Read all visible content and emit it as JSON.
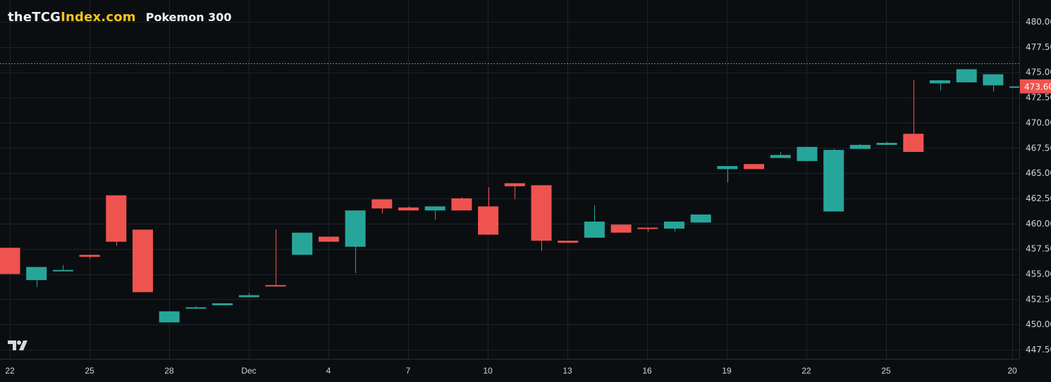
{
  "header": {
    "brand_white": "theTCG",
    "brand_yellow": "Index.com",
    "symbol": "Pokemon 300"
  },
  "colors": {
    "background": "#0b0e11",
    "grid": "#1e222b",
    "axis_text": "#d1d4dc",
    "up": "#26a69a",
    "down": "#ef5350",
    "brand_yellow": "#f5c518",
    "last_price_label_bg": "#ef5350",
    "high_line": "#26a69a"
  },
  "price_axis": {
    "last_price_label": "473.60",
    "ticks": [
      "480.00",
      "477.50",
      "475.00",
      "472.50",
      "470.00",
      "467.50",
      "465.00",
      "462.50",
      "460.00",
      "457.50",
      "455.00",
      "452.50",
      "450.00",
      "447.50"
    ]
  },
  "time_axis": {
    "ticks": [
      "22",
      "25",
      "28",
      "Dec",
      "4",
      "7",
      "10",
      "13",
      "16",
      "19",
      "22",
      "25",
      "20"
    ]
  },
  "chart_data": {
    "type": "candlestick",
    "title": "Pokemon 300",
    "source_label": "theTCGIndex.com",
    "xlabel": "",
    "ylabel": "",
    "ylim": [
      446.5,
      481.5
    ],
    "y_ticks": [
      447.5,
      450,
      452.5,
      455,
      457.5,
      460,
      462.5,
      465,
      467.5,
      470,
      472.5,
      475,
      477.5,
      480
    ],
    "x_tick_labels": [
      "22",
      "25",
      "28",
      "Dec",
      "4",
      "7",
      "10",
      "13",
      "16",
      "19",
      "22",
      "25",
      "20"
    ],
    "grid": true,
    "last_price": 473.6,
    "dotted_high_line": 475.9,
    "candles": [
      {
        "date": "Nov 22",
        "open": 457.6,
        "high": 457.6,
        "low": 455.0,
        "close": 455.0
      },
      {
        "date": "Nov 23",
        "open": 454.4,
        "high": 455.7,
        "low": 453.7,
        "close": 455.7
      },
      {
        "date": "Nov 24",
        "open": 455.4,
        "high": 455.9,
        "low": 455.3,
        "close": 455.4
      },
      {
        "date": "Nov 25",
        "open": 456.9,
        "high": 456.9,
        "low": 456.5,
        "close": 456.7
      },
      {
        "date": "Nov 26",
        "open": 462.8,
        "high": 462.8,
        "low": 457.8,
        "close": 458.2
      },
      {
        "date": "Nov 27",
        "open": 459.4,
        "high": 459.4,
        "low": 453.2,
        "close": 453.2
      },
      {
        "date": "Nov 28",
        "open": 450.2,
        "high": 451.3,
        "low": 450.2,
        "close": 451.3
      },
      {
        "date": "Nov 29",
        "open": 451.6,
        "high": 451.8,
        "low": 451.6,
        "close": 451.7
      },
      {
        "date": "Nov 30",
        "open": 451.9,
        "high": 452.1,
        "low": 451.9,
        "close": 452.1
      },
      {
        "date": "Dec 1",
        "open": 452.7,
        "high": 453.1,
        "low": 452.7,
        "close": 452.9
      },
      {
        "date": "Dec 2",
        "open": 453.9,
        "high": 459.4,
        "low": 453.8,
        "close": 453.8
      },
      {
        "date": "Dec 3",
        "open": 456.9,
        "high": 459.1,
        "low": 456.9,
        "close": 459.1
      },
      {
        "date": "Dec 4",
        "open": 458.7,
        "high": 458.7,
        "low": 458.2,
        "close": 458.2
      },
      {
        "date": "Dec 5",
        "open": 457.7,
        "high": 461.3,
        "low": 455.1,
        "close": 461.3
      },
      {
        "date": "Dec 6",
        "open": 462.4,
        "high": 462.4,
        "low": 461.0,
        "close": 461.5
      },
      {
        "date": "Dec 7",
        "open": 461.6,
        "high": 461.7,
        "low": 461.3,
        "close": 461.3
      },
      {
        "date": "Dec 8",
        "open": 461.3,
        "high": 461.7,
        "low": 460.4,
        "close": 461.7
      },
      {
        "date": "Dec 9",
        "open": 462.5,
        "high": 462.6,
        "low": 461.3,
        "close": 461.3
      },
      {
        "date": "Dec 10",
        "open": 461.7,
        "high": 463.6,
        "low": 458.9,
        "close": 458.9
      },
      {
        "date": "Dec 11",
        "open": 464.0,
        "high": 464.0,
        "low": 462.4,
        "close": 463.7
      },
      {
        "date": "Dec 12",
        "open": 463.8,
        "high": 463.8,
        "low": 457.3,
        "close": 458.3
      },
      {
        "date": "Dec 13",
        "open": 458.3,
        "high": 458.3,
        "low": 458.1,
        "close": 458.1
      },
      {
        "date": "Dec 14",
        "open": 458.6,
        "high": 461.8,
        "low": 458.6,
        "close": 460.2
      },
      {
        "date": "Dec 15",
        "open": 459.9,
        "high": 459.9,
        "low": 459.1,
        "close": 459.1
      },
      {
        "date": "Dec 16",
        "open": 459.6,
        "high": 459.6,
        "low": 459.2,
        "close": 459.5
      },
      {
        "date": "Dec 17",
        "open": 459.5,
        "high": 460.2,
        "low": 459.2,
        "close": 460.2
      },
      {
        "date": "Dec 18",
        "open": 460.1,
        "high": 460.9,
        "low": 460.1,
        "close": 460.9
      },
      {
        "date": "Dec 19",
        "open": 465.4,
        "high": 465.7,
        "low": 464.1,
        "close": 465.7
      },
      {
        "date": "Dec 20",
        "open": 465.9,
        "high": 465.9,
        "low": 465.4,
        "close": 465.4
      },
      {
        "date": "Dec 21",
        "open": 466.5,
        "high": 467.1,
        "low": 466.5,
        "close": 466.8
      },
      {
        "date": "Dec 22",
        "open": 466.2,
        "high": 467.6,
        "low": 466.2,
        "close": 467.6
      },
      {
        "date": "Dec 23",
        "open": 461.2,
        "high": 467.4,
        "low": 461.2,
        "close": 467.3
      },
      {
        "date": "Dec 24",
        "open": 467.4,
        "high": 467.9,
        "low": 467.4,
        "close": 467.8
      },
      {
        "date": "Dec 25",
        "open": 467.8,
        "high": 468.1,
        "low": 467.8,
        "close": 468.0
      },
      {
        "date": "Dec 26",
        "open": 468.9,
        "high": 474.2,
        "low": 467.1,
        "close": 467.1
      },
      {
        "date": "Dec 27",
        "open": 473.9,
        "high": 474.2,
        "low": 473.2,
        "close": 474.2
      },
      {
        "date": "Dec 28",
        "open": 474.0,
        "high": 475.3,
        "low": 474.0,
        "close": 475.3
      },
      {
        "date": "Dec 29",
        "open": 473.7,
        "high": 474.8,
        "low": 473.1,
        "close": 474.8
      },
      {
        "date": "Dec 30",
        "open": 473.6,
        "high": 474.0,
        "low": 473.6,
        "close": 473.6
      }
    ]
  }
}
